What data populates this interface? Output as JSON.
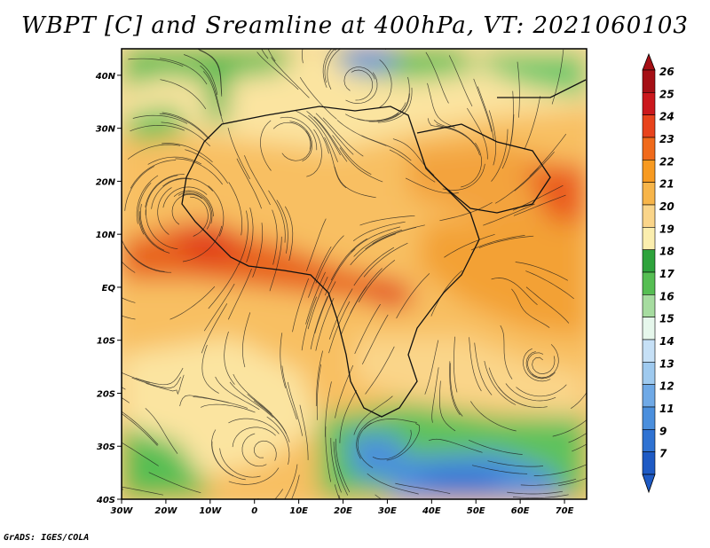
{
  "title": "WBPT [C] and Sreamline at 400hPa, VT: 2021060103",
  "credit": "GrADS: IGES/COLA",
  "map": {
    "lon_ticks": [
      "30W",
      "20W",
      "10W",
      "0",
      "10E",
      "20E",
      "30E",
      "40E",
      "50E",
      "60E",
      "70E"
    ],
    "lat_ticks": [
      "40N",
      "30N",
      "20N",
      "10N",
      "EQ",
      "10S",
      "20S",
      "30S",
      "40S"
    ],
    "lon_range": [
      -30,
      75
    ],
    "lat_range": [
      -40,
      45
    ]
  },
  "colorbar": {
    "labels": [
      "26",
      "25",
      "24",
      "23",
      "22",
      "21",
      "20",
      "19",
      "18",
      "17",
      "16",
      "15",
      "14",
      "13",
      "12",
      "11",
      "9",
      "7"
    ],
    "colors": [
      "#a50f15",
      "#cb181d",
      "#e8431c",
      "#f06a1b",
      "#f79a21",
      "#f7b54a",
      "#fad58a",
      "#fbeeae",
      "#2ea33c",
      "#56be53",
      "#a6dca0",
      "#e6f7ec",
      "#c6e0f6",
      "#9fcaef",
      "#6fa9e6",
      "#4b8fdd",
      "#2f72d2",
      "#1e5ac4"
    ]
  }
}
